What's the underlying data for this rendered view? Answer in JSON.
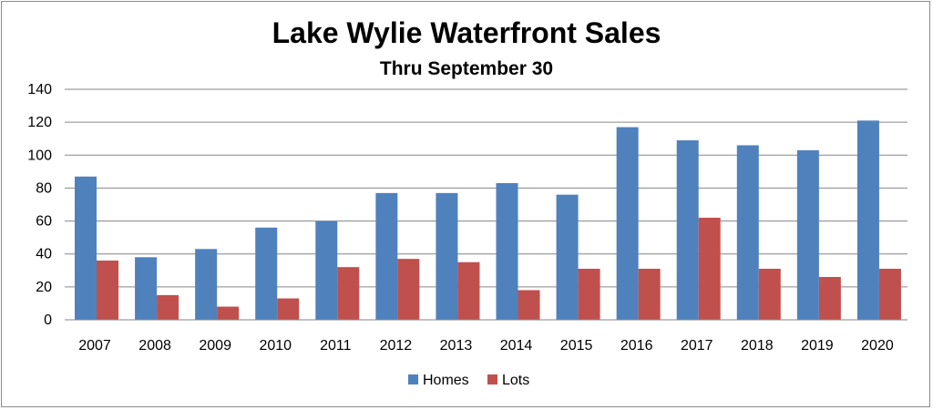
{
  "chart_data": {
    "type": "bar",
    "title": "Lake Wylie Waterfront Sales",
    "subtitle": "Thru September 30",
    "xlabel": "",
    "ylabel": "",
    "ylim": [
      0,
      140
    ],
    "yticks": [
      0,
      20,
      40,
      60,
      80,
      100,
      120,
      140
    ],
    "grid": true,
    "legend_position": "bottom",
    "categories": [
      "2007",
      "2008",
      "2009",
      "2010",
      "2011",
      "2012",
      "2013",
      "2014",
      "2015",
      "2016",
      "2017",
      "2018",
      "2019",
      "2020"
    ],
    "series": [
      {
        "name": "Homes",
        "color": "#4F81BD",
        "values": [
          87,
          38,
          43,
          56,
          60,
          77,
          77,
          83,
          76,
          117,
          109,
          106,
          103,
          121
        ]
      },
      {
        "name": "Lots",
        "color": "#C0504D",
        "values": [
          36,
          15,
          8,
          13,
          32,
          37,
          35,
          18,
          31,
          31,
          62,
          31,
          26,
          31
        ]
      }
    ]
  }
}
